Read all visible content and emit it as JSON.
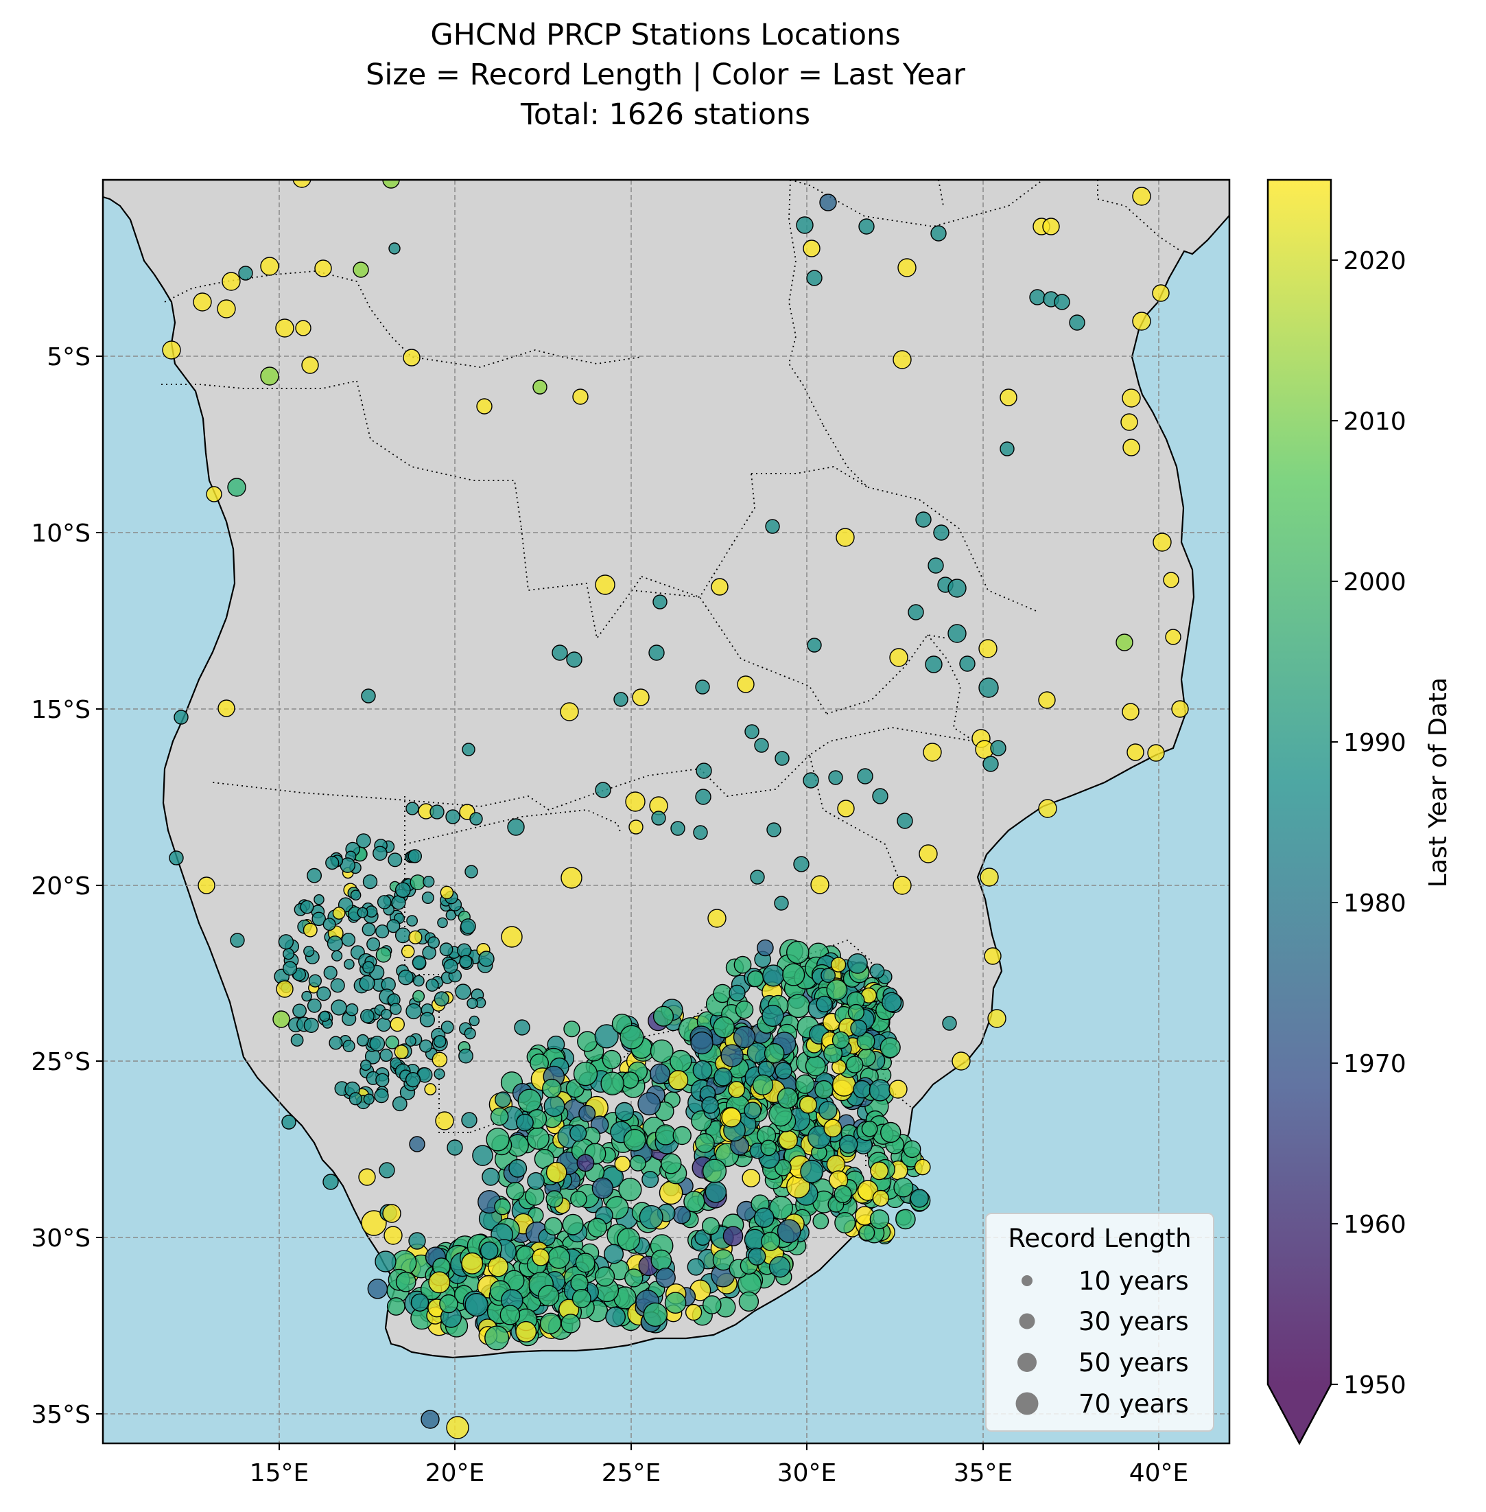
{
  "title": {
    "line1": "GHCNd PRCP Stations Locations",
    "line2": "Size = Record Length | Color = Last Year",
    "line3": "Total: 1626 stations"
  },
  "colors": {
    "ocean": "#add8e6",
    "land": "#d3d3d3",
    "colormap": [
      "#440154",
      "#3b528b",
      "#21918c",
      "#5ec962",
      "#fde725"
    ]
  },
  "map": {
    "x_ticks": [
      "15°E",
      "20°E",
      "25°E",
      "30°E",
      "35°E",
      "40°E"
    ],
    "y_ticks": [
      "5°S",
      "10°S",
      "15°S",
      "20°S",
      "25°S",
      "30°S",
      "35°S"
    ],
    "lon_range": [
      10,
      42
    ],
    "lat_range": [
      -36,
      -1
    ],
    "gridlines": true
  },
  "colorbar": {
    "label": "Last Year of Data",
    "ticks": [
      "1950",
      "1960",
      "1970",
      "1980",
      "1990",
      "2000",
      "2010",
      "2020"
    ],
    "range": [
      1950,
      2025
    ],
    "extend": "min"
  },
  "legend": {
    "title": "Record Length",
    "placement": "lower-right",
    "items": [
      {
        "label": "10 years",
        "years": 10
      },
      {
        "label": "30 years",
        "years": 30
      },
      {
        "label": "50 years",
        "years": 50
      },
      {
        "label": "70 years",
        "years": 70
      }
    ]
  }
}
